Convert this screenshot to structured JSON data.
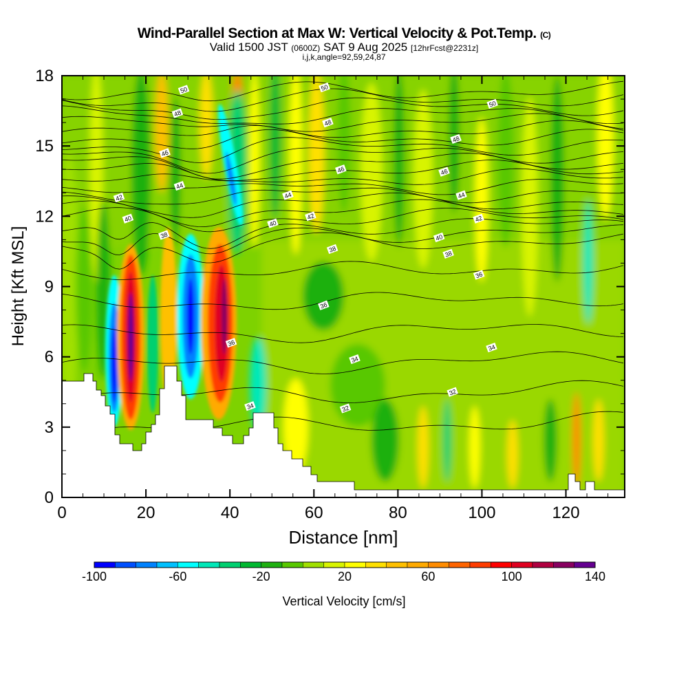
{
  "title": {
    "main": "Wind-Parallel Section at Max W: Vertical Velocity & Pot.Temp.",
    "copyright": "(C)",
    "valid_prefix": "Valid 1500 JST",
    "valid_utc": "(0600Z)",
    "valid_date": "SAT 9 Aug 2025",
    "forecast": "[12hrFcst@2231z]",
    "indices": "i,j,k,angle=92,59,24,87"
  },
  "chart_data": {
    "type": "heatmap",
    "title": "Wind-Parallel Section at Max W: Vertical Velocity & Pot.Temp.",
    "xlabel": "Distance [nm]",
    "ylabel": "Height [Kft MSL]",
    "xlim": [
      0,
      134
    ],
    "ylim": [
      0,
      18
    ],
    "x_ticks": [
      "0",
      "20",
      "40",
      "60",
      "80",
      "100",
      "120"
    ],
    "y_ticks": [
      "0",
      "3",
      "6",
      "9",
      "12",
      "15",
      "18"
    ],
    "colorbar": {
      "label": "Vertical Velocity [cm/s]",
      "min": -100,
      "max": 140,
      "step": 10,
      "tick_labels": [
        "-100",
        "-60",
        "-20",
        "20",
        "60",
        "100",
        "140"
      ],
      "colors": [
        "#0000ff",
        "#0050ff",
        "#0082ff",
        "#00c0ff",
        "#00ffff",
        "#00e8b8",
        "#00d070",
        "#00b830",
        "#1eb010",
        "#58c800",
        "#a0e000",
        "#d8f400",
        "#ffff00",
        "#ffe000",
        "#ffc000",
        "#ffaa00",
        "#ff8c00",
        "#ff6400",
        "#ff3c00",
        "#ff0000",
        "#e00020",
        "#b00040",
        "#880060",
        "#640090"
      ]
    },
    "contour_field": "Potential temperature",
    "contour_labels": [
      {
        "text": "50",
        "x": 29,
        "h": 17.4
      },
      {
        "text": "48",
        "x": 27.5,
        "h": 16.4
      },
      {
        "text": "46",
        "x": 24.5,
        "h": 14.7
      },
      {
        "text": "44",
        "x": 28,
        "h": 13.3
      },
      {
        "text": "42",
        "x": 13.6,
        "h": 12.8
      },
      {
        "text": "40",
        "x": 15.7,
        "h": 11.9
      },
      {
        "text": "38",
        "x": 24.3,
        "h": 11.2
      },
      {
        "text": "50",
        "x": 62.5,
        "h": 17.5
      },
      {
        "text": "48",
        "x": 63.3,
        "h": 16
      },
      {
        "text": "46",
        "x": 66.4,
        "h": 14
      },
      {
        "text": "44",
        "x": 53.8,
        "h": 12.9
      },
      {
        "text": "42",
        "x": 59.2,
        "h": 12.0
      },
      {
        "text": "40",
        "x": 50.2,
        "h": 11.7
      },
      {
        "text": "38",
        "x": 64.4,
        "h": 10.6
      },
      {
        "text": "36",
        "x": 62.3,
        "h": 8.2
      },
      {
        "text": "36",
        "x": 40.3,
        "h": 6.6
      },
      {
        "text": "34",
        "x": 44.8,
        "h": 3.9
      },
      {
        "text": "34",
        "x": 69.7,
        "h": 5.9
      },
      {
        "text": "32",
        "x": 67.5,
        "h": 3.8
      },
      {
        "text": "32",
        "x": 93,
        "h": 4.5
      },
      {
        "text": "34",
        "x": 102.3,
        "h": 6.4
      },
      {
        "text": "36",
        "x": 99.3,
        "h": 9.5
      },
      {
        "text": "38",
        "x": 92,
        "h": 10.4
      },
      {
        "text": "40",
        "x": 89.8,
        "h": 11.1
      },
      {
        "text": "42",
        "x": 99.2,
        "h": 11.9
      },
      {
        "text": "44",
        "x": 95.1,
        "h": 12.9
      },
      {
        "text": "46",
        "x": 91,
        "h": 13.9
      },
      {
        "text": "48",
        "x": 93.8,
        "h": 15.3
      },
      {
        "text": "50",
        "x": 102.5,
        "h": 16.8
      }
    ]
  }
}
